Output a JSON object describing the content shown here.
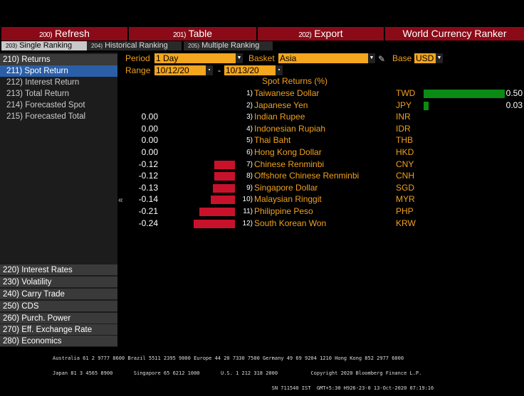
{
  "toolbar": {
    "refresh": {
      "num": "200)",
      "label": "Refresh"
    },
    "table": {
      "num": "201)",
      "label": "Table"
    },
    "export": {
      "num": "202)",
      "label": "Export"
    },
    "title": "World Currency Ranker"
  },
  "tabs": [
    {
      "num": "203)",
      "label": "Single Ranking"
    },
    {
      "num": "204)",
      "label": "Historical Ranking"
    },
    {
      "num": "205)",
      "label": "Multiple Ranking"
    }
  ],
  "sidebar": {
    "returns": "210) Returns",
    "sub": [
      "211) Spot Return",
      "212) Interest Return",
      "213) Total Return",
      "214) Forecasted Spot",
      "215) Forecasted Total"
    ],
    "bottom": [
      "220) Interest Rates",
      "230) Volatility",
      "240) Carry Trade",
      "250) CDS",
      "260) Purch. Power",
      "270) Eff. Exchange Rate",
      "280) Economics"
    ],
    "collapse_glyph": "«"
  },
  "controls": {
    "period_label": "Period",
    "period_value": "1 Day",
    "basket_label": "Basket",
    "basket_value": "Asia",
    "base_label": "Base",
    "base_value": "USD",
    "range_label": "Range",
    "range_from": "10/12/20",
    "range_sep": "-",
    "range_to": "10/13/20"
  },
  "table_header": "Spot Returns (%)",
  "chart_data": {
    "type": "bar",
    "title": "Spot Returns (%)",
    "categories": [
      "Taiwanese Dollar",
      "Japanese Yen",
      "Indian Rupee",
      "Indonesian Rupiah",
      "Thai Baht",
      "Hong Kong Dollar",
      "Chinese Renminbi",
      "Offshore Chinese Renminbi",
      "Singapore Dollar",
      "Malaysian Ringgit",
      "Philippine Peso",
      "South Korean Won"
    ],
    "codes": [
      "TWD",
      "JPY",
      "INR",
      "IDR",
      "THB",
      "HKD",
      "CNY",
      "CNH",
      "SGD",
      "MYR",
      "PHP",
      "KRW"
    ],
    "ranks": [
      "1)",
      "2)",
      "3)",
      "4)",
      "5)",
      "6)",
      "7)",
      "8)",
      "9)",
      "10)",
      "11)",
      "12)"
    ],
    "values": [
      0.5,
      0.03,
      0.0,
      0.0,
      0.0,
      0.0,
      -0.12,
      -0.12,
      -0.13,
      -0.14,
      -0.21,
      -0.24
    ],
    "labels": [
      "0.50",
      "0.03",
      "0.00",
      "0.00",
      "0.00",
      "0.00",
      "-0.12",
      "-0.12",
      "-0.13",
      "-0.14",
      "-0.21",
      "-0.24"
    ],
    "colors": {
      "positive": "#0b8a16",
      "negative": "#c8122c"
    }
  },
  "footer": {
    "line1": "Australia 61 2 9777 8600 Brazil 5511 2395 9000 Europe 44 20 7330 7500 Germany 49 69 9204 1210 Hong Kong 852 2977 6000",
    "line2": "Japan 81 3 4565 8900       Singapore 65 6212 1000       U.S. 1 212 318 2000           Copyright 2020 Bloomberg Finance L.P.",
    "line3": "                                                                         SN 711540 IST  GMT+5:30 H926-23-0 13-Oct-2020 07:19:16"
  }
}
